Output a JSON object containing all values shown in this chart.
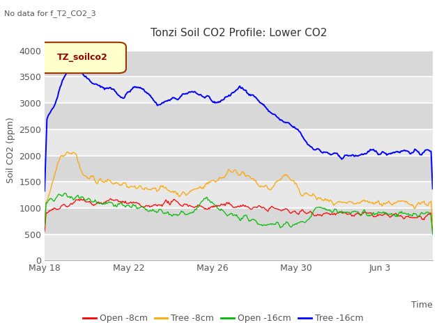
{
  "title": "Tonzi Soil CO2 Profile: Lower CO2",
  "subtitle": "No data for f_T2_CO2_3",
  "ylabel": "Soil CO2 (ppm)",
  "xlabel": "Time",
  "ylim": [
    0,
    4200
  ],
  "yticks": [
    0,
    500,
    1000,
    1500,
    2000,
    2500,
    3000,
    3500,
    4000
  ],
  "legend_label": "TZ_soilco2",
  "series_labels": [
    "Open -8cm",
    "Tree -8cm",
    "Open -16cm",
    "Tree -16cm"
  ],
  "series_colors": [
    "#ff0000",
    "#ffa500",
    "#00bb00",
    "#0000ff"
  ],
  "xtick_labels": [
    "May 18",
    "May 22",
    "May 26",
    "May 30",
    "Jun 3"
  ],
  "band_colors": [
    "#e8e8e8",
    "#d8d8d8"
  ],
  "title_fontsize": 11,
  "axis_fontsize": 9,
  "legend_fontsize": 9,
  "tick_color": "#555555"
}
